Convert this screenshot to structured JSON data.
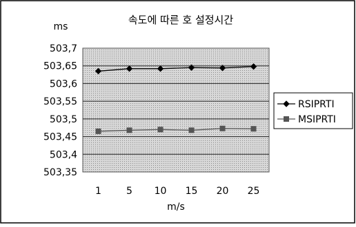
{
  "chart_data": {
    "type": "line",
    "title": "속도에 따른 호 설정시간",
    "ylabel": "ms",
    "xlabel": "m/s",
    "categories": [
      "1",
      "5",
      "10",
      "15",
      "20",
      "25"
    ],
    "ylim": [
      503.35,
      503.7
    ],
    "y_ticks": [
      "503,7",
      "503,65",
      "503,6",
      "503,55",
      "503,5",
      "503,45",
      "503,4",
      "503,35"
    ],
    "grid": true,
    "legend_position": "right",
    "series": [
      {
        "name": "RSIPRTI",
        "values": [
          503.635,
          503.642,
          503.642,
          503.645,
          503.644,
          503.648
        ],
        "color": "#000000",
        "marker": "diamond"
      },
      {
        "name": "MSIPRTI",
        "values": [
          503.465,
          503.468,
          503.47,
          503.468,
          503.473,
          503.472
        ],
        "color": "#555555",
        "marker": "square"
      }
    ]
  }
}
